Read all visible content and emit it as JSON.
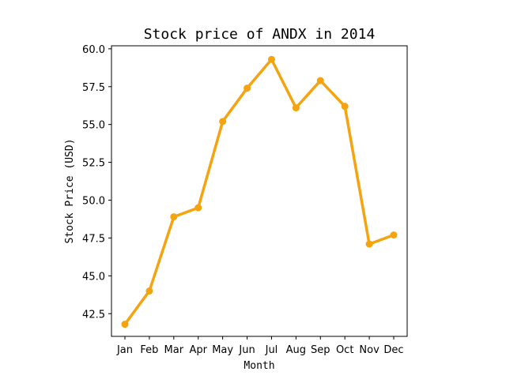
{
  "chart_data": {
    "type": "line",
    "title": "Stock price of ANDX in 2014",
    "xlabel": "Month",
    "ylabel": "Stock Price (USD)",
    "categories": [
      "Jan",
      "Feb",
      "Mar",
      "Apr",
      "May",
      "Jun",
      "Jul",
      "Aug",
      "Sep",
      "Oct",
      "Nov",
      "Dec"
    ],
    "values": [
      41.8,
      44.0,
      48.9,
      49.5,
      55.2,
      57.4,
      59.3,
      56.1,
      57.9,
      56.2,
      47.1,
      47.7
    ],
    "ylim": [
      41.0,
      60.2
    ],
    "yticks": [
      "42.5",
      "45.0",
      "47.5",
      "50.0",
      "52.5",
      "55.0",
      "57.5",
      "60.0"
    ],
    "grid": false,
    "line_color": "#f5a30f",
    "marker": "circle"
  }
}
